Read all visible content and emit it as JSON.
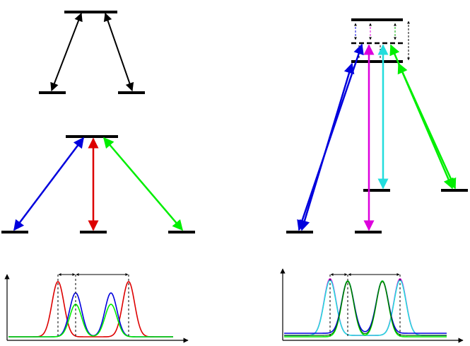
{
  "diagram": {
    "panels": [
      "lambda-three-level-scheme",
      "v-four-level-scheme",
      "multi-level-coupling-scheme",
      "resonance-spectrum-left",
      "resonance-spectrum-right"
    ]
  },
  "colors": {
    "black": "#000000",
    "blue": "#0000dd",
    "red": "#dd0000",
    "green": "#00ee00",
    "magenta": "#dd00dd",
    "cyan": "#22dddd",
    "dark_green": "#006600"
  }
}
